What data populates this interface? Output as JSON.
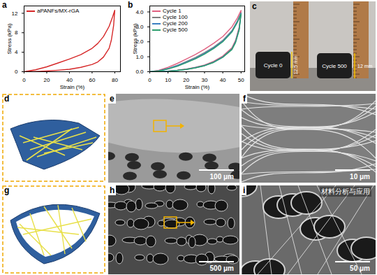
{
  "chart_data": [
    {
      "panel_label": "a",
      "type": "line",
      "xlabel": "Strain (%)",
      "ylabel": "Stress (kPa)",
      "xlim": [
        0,
        85
      ],
      "ylim": [
        0,
        13.5
      ],
      "xticks": [
        0,
        20,
        40,
        60,
        80
      ],
      "yticks": [
        0,
        4,
        8,
        12
      ],
      "legend": "top-left",
      "series": [
        {
          "name": "aPANFs/MX-rGA",
          "color": "#d62728",
          "x": [
            0,
            10,
            20,
            30,
            40,
            50,
            60,
            65,
            70,
            75,
            78,
            80,
            79,
            77,
            75,
            70,
            65,
            60,
            50,
            40,
            30,
            20,
            10,
            0
          ],
          "values": [
            0,
            0.4,
            1.0,
            1.8,
            2.6,
            3.5,
            4.8,
            5.8,
            7.2,
            9.3,
            11.2,
            12.6,
            9.5,
            6.5,
            4.8,
            3.0,
            2.0,
            1.5,
            0.9,
            0.5,
            0.3,
            0.15,
            0.05,
            0
          ]
        }
      ]
    },
    {
      "panel_label": "b",
      "type": "line",
      "xlabel": "Strain (%)",
      "ylabel": "Stress (kPa)",
      "xlim": [
        0,
        52
      ],
      "ylim": [
        0,
        4.4
      ],
      "xticks": [
        0,
        10,
        20,
        30,
        40,
        50
      ],
      "yticks": [
        0,
        1,
        2,
        3,
        4
      ],
      "legend": "top-left",
      "series": [
        {
          "name": "Cycle 1",
          "color": "#e06080",
          "x": [
            0,
            5,
            10,
            15,
            20,
            25,
            30,
            35,
            40,
            45,
            48,
            50,
            49,
            47,
            45,
            40,
            35,
            30,
            25,
            20,
            15,
            10,
            5,
            0
          ],
          "values": [
            0,
            0.1,
            0.3,
            0.55,
            0.85,
            1.15,
            1.5,
            1.9,
            2.35,
            3.0,
            3.6,
            4.1,
            3.0,
            2.1,
            1.6,
            1.05,
            0.7,
            0.45,
            0.3,
            0.18,
            0.1,
            0.05,
            0.02,
            0
          ]
        },
        {
          "name": "Cycle 100",
          "color": "#7f7f7f",
          "x": [
            0,
            5,
            10,
            15,
            20,
            25,
            30,
            35,
            40,
            45,
            48,
            50,
            49,
            47,
            45,
            40,
            35,
            30,
            25,
            20,
            15,
            10,
            5,
            0
          ],
          "values": [
            0,
            0.07,
            0.22,
            0.42,
            0.68,
            0.95,
            1.28,
            1.65,
            2.1,
            2.75,
            3.4,
            3.95,
            2.9,
            2.05,
            1.55,
            1.0,
            0.66,
            0.42,
            0.28,
            0.17,
            0.09,
            0.04,
            0.01,
            0
          ]
        },
        {
          "name": "Cycle 200",
          "color": "#3a7fc1",
          "x": [
            0,
            5,
            10,
            15,
            20,
            25,
            30,
            35,
            40,
            45,
            48,
            50,
            49,
            47,
            45,
            40,
            35,
            30,
            25,
            20,
            15,
            10,
            5,
            0
          ],
          "values": [
            0,
            0.06,
            0.2,
            0.4,
            0.64,
            0.9,
            1.22,
            1.6,
            2.05,
            2.7,
            3.35,
            3.9,
            2.85,
            2.0,
            1.5,
            0.98,
            0.64,
            0.41,
            0.27,
            0.16,
            0.08,
            0.04,
            0.01,
            0
          ]
        },
        {
          "name": "Cycle 500",
          "color": "#2e9e6e",
          "x": [
            0,
            5,
            10,
            15,
            20,
            25,
            30,
            35,
            40,
            45,
            48,
            50,
            49,
            47,
            45,
            40,
            35,
            30,
            25,
            20,
            15,
            10,
            5,
            0
          ],
          "values": [
            0,
            0.05,
            0.18,
            0.36,
            0.6,
            0.86,
            1.18,
            1.55,
            2.0,
            2.65,
            3.3,
            3.85,
            2.8,
            1.95,
            1.48,
            0.96,
            0.62,
            0.4,
            0.26,
            0.15,
            0.08,
            0.03,
            0.01,
            0
          ]
        }
      ]
    }
  ],
  "panels": {
    "c": {
      "panel_label": "c",
      "left_label": "Cycle 0",
      "left_height": "12.5 mm",
      "right_label": "Cycle 500",
      "right_height": "12 mm"
    },
    "d": {
      "panel_label": "d"
    },
    "e": {
      "panel_label": "e",
      "scale_bar": "100 μm"
    },
    "f": {
      "panel_label": "f",
      "scale_bar": "10 μm"
    },
    "g": {
      "panel_label": "g"
    },
    "h": {
      "panel_label": "h",
      "scale_bar": "500 μm"
    },
    "i": {
      "panel_label": "i",
      "scale_bar": "50 μm"
    },
    "watermark": "材料分析与应用"
  }
}
